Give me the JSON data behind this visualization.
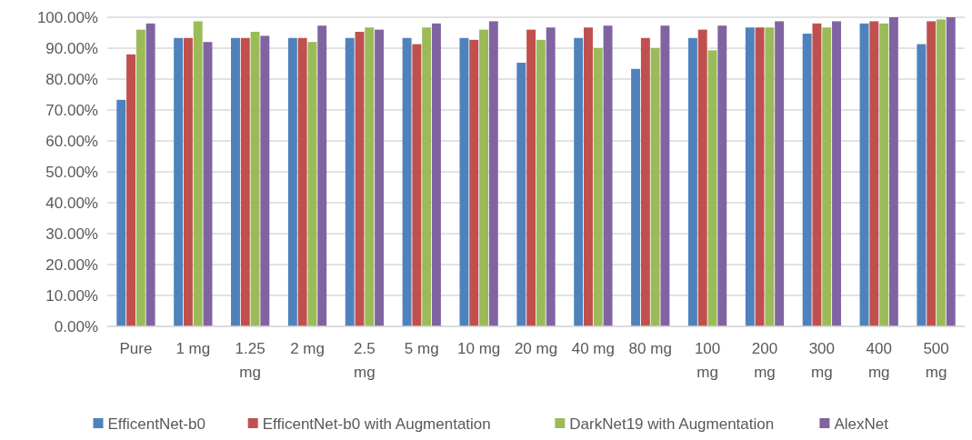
{
  "chart_data": {
    "type": "bar",
    "categories": [
      "Pure",
      "1 mg",
      "1.25 mg",
      "2 mg",
      "2.5 mg",
      "5 mg",
      "10 mg",
      "20 mg",
      "40 mg",
      "80 mg",
      "100 mg",
      "200 mg",
      "300 mg",
      "400 mg",
      "500 mg"
    ],
    "series": [
      {
        "name": "EfficentNet-b0",
        "color": "#4f81bd",
        "values": [
          73.3,
          93.3,
          93.3,
          93.3,
          93.3,
          93.3,
          93.3,
          85.3,
          93.3,
          83.3,
          93.3,
          96.7,
          94.7,
          98,
          91.3
        ]
      },
      {
        "name": "EfficentNet-b0 with Augmentation",
        "color": "#c0504d",
        "values": [
          88,
          93.3,
          93.3,
          93.3,
          95.3,
          91.3,
          92.7,
          96,
          96.7,
          93.3,
          96,
          96.7,
          98,
          98.7,
          98.7
        ]
      },
      {
        "name": "DarkNet19 with Augmentation",
        "color": "#9bbb59",
        "values": [
          96,
          98.7,
          95.3,
          92,
          96.7,
          96.7,
          96,
          92.7,
          90,
          90,
          89.3,
          96.7,
          96.7,
          98,
          99.3
        ]
      },
      {
        "name": "AlexNet",
        "color": "#8064a2",
        "values": [
          98,
          92,
          94,
          97.3,
          96,
          98,
          98.7,
          96.7,
          97.3,
          97.3,
          97.3,
          98.7,
          98.7,
          100,
          100
        ]
      }
    ],
    "ylim": [
      0,
      100
    ],
    "yticks": [
      {
        "value": 0,
        "label": "0.00%"
      },
      {
        "value": 10,
        "label": "10.00%"
      },
      {
        "value": 20,
        "label": "20.00%"
      },
      {
        "value": 30,
        "label": "30.00%"
      },
      {
        "value": 40,
        "label": "40.00%"
      },
      {
        "value": 50,
        "label": "50.00%"
      },
      {
        "value": 60,
        "label": "60.00%"
      },
      {
        "value": 70,
        "label": "70.00%"
      },
      {
        "value": 80,
        "label": "80.00%"
      },
      {
        "value": 90,
        "label": "90.00%"
      },
      {
        "value": 100,
        "label": "100.00%"
      }
    ],
    "grid": "y",
    "legend": "bottom"
  }
}
